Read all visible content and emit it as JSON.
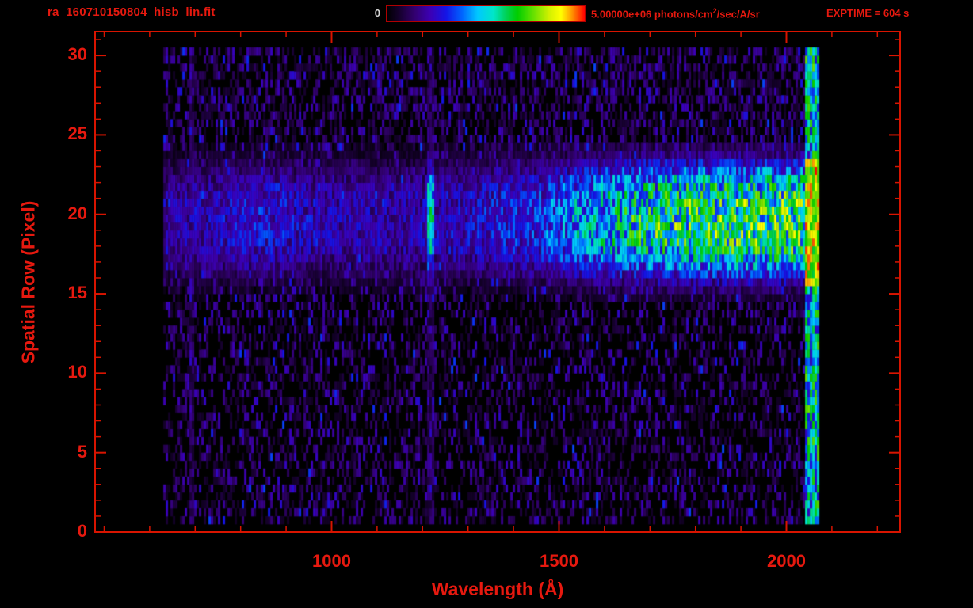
{
  "header": {
    "filename": "ra_160710150804_hisb_lin.fit",
    "exptime": "EXPTIME = 604 s",
    "colorbar": {
      "min_label": "0",
      "max_label_prefix": "5.00000e+06 photons/cm",
      "max_label_sup": "2",
      "max_label_suffix": "/sec/A/sr"
    }
  },
  "colors": {
    "accent_red": "#e6190f",
    "axis_red": "#d81400",
    "min_label_color": "#d8d8d8",
    "background": "#000000"
  },
  "chart_data": {
    "type": "heatmap",
    "title": "ra_160710150804_hisb_lin.fit",
    "xlabel": "Wavelength (Å)",
    "ylabel": "Spatial Row (Pixel)",
    "xlim": [
      480,
      2250
    ],
    "ylim": [
      0,
      31.5
    ],
    "xticks": [
      1000,
      1500,
      2000
    ],
    "x_minor_step": 100,
    "yticks": [
      0,
      5,
      10,
      15,
      20,
      25,
      30
    ],
    "y_minor_step": 1,
    "colorbar": {
      "min": 0,
      "max": 5000000,
      "units": "photons/cm^2/sec/A/sr"
    },
    "exposure_time_s": 604,
    "colormap_stops": [
      [
        0.0,
        "#000000"
      ],
      [
        0.06,
        "#14002a"
      ],
      [
        0.14,
        "#32006e"
      ],
      [
        0.22,
        "#3c00b4"
      ],
      [
        0.3,
        "#1414e6"
      ],
      [
        0.38,
        "#0064ff"
      ],
      [
        0.46,
        "#00c8ff"
      ],
      [
        0.54,
        "#00e6c8"
      ],
      [
        0.6,
        "#00d25a"
      ],
      [
        0.66,
        "#00cd00"
      ],
      [
        0.74,
        "#64e100"
      ],
      [
        0.82,
        "#d2f000"
      ],
      [
        0.88,
        "#ffff00"
      ],
      [
        0.93,
        "#ffa000"
      ],
      [
        0.97,
        "#ff4600"
      ],
      [
        1.0,
        "#ff0000"
      ]
    ],
    "data_extent": {
      "wavelength": [
        630,
        2072
      ],
      "rows": [
        0.5,
        30.2
      ]
    },
    "features": {
      "speck_probability": 0.42,
      "speck_max": 0.2,
      "bright_speck_probability": 0.035,
      "upper_noise": {
        "rows": [
          24,
          30.2
        ],
        "probability": 0.18,
        "max": 0.26
      },
      "band": {
        "rows": [
          14.3,
          24.2
        ],
        "peak_row": 19.4,
        "sigma": 3.0,
        "ramp": [
          [
            630,
            0.2
          ],
          [
            850,
            0.28
          ],
          [
            1000,
            0.22
          ],
          [
            1180,
            0.22
          ],
          [
            1300,
            0.26
          ],
          [
            1450,
            0.32
          ],
          [
            1550,
            0.45
          ],
          [
            1700,
            0.6
          ],
          [
            1850,
            0.64
          ],
          [
            2040,
            0.66
          ]
        ]
      },
      "emission_lines": [
        {
          "wavelength": 1215,
          "width": 16,
          "band_boost": 0.52,
          "full_column": 0.15
        },
        {
          "wavelength": 690,
          "width": 12,
          "band_boost": 0.16,
          "full_column": 0.13
        },
        {
          "wavelength": 800,
          "width": 50,
          "band_boost": 0.2,
          "full_column": 0.0
        }
      ],
      "right_edge": {
        "wavelength": [
          2038,
          2072
        ],
        "all_rows_min": 0.22,
        "all_rows_max": 0.75,
        "band_max": 1.0
      }
    }
  }
}
